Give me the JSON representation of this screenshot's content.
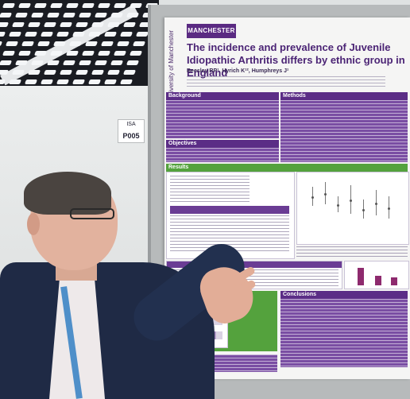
{
  "poster": {
    "logo_text": "MANCHESTER",
    "side_text": "The University of Manchester",
    "title": "The incidence and prevalence of Juvenile Idiopathic Arthritis differs by ethnic group in England",
    "authors": "Beesley RP¹, Hyrich K¹², Humphreys J¹",
    "sections": {
      "background": "Background",
      "methods": "Methods",
      "objectives": "Objectives",
      "results": "Results",
      "conclusions": "Conclusions"
    }
  },
  "board_label": {
    "small": "ISA",
    "code": "P005"
  },
  "colors": {
    "accent_purple": "#5b2d86",
    "accent_green": "#54a23d"
  }
}
